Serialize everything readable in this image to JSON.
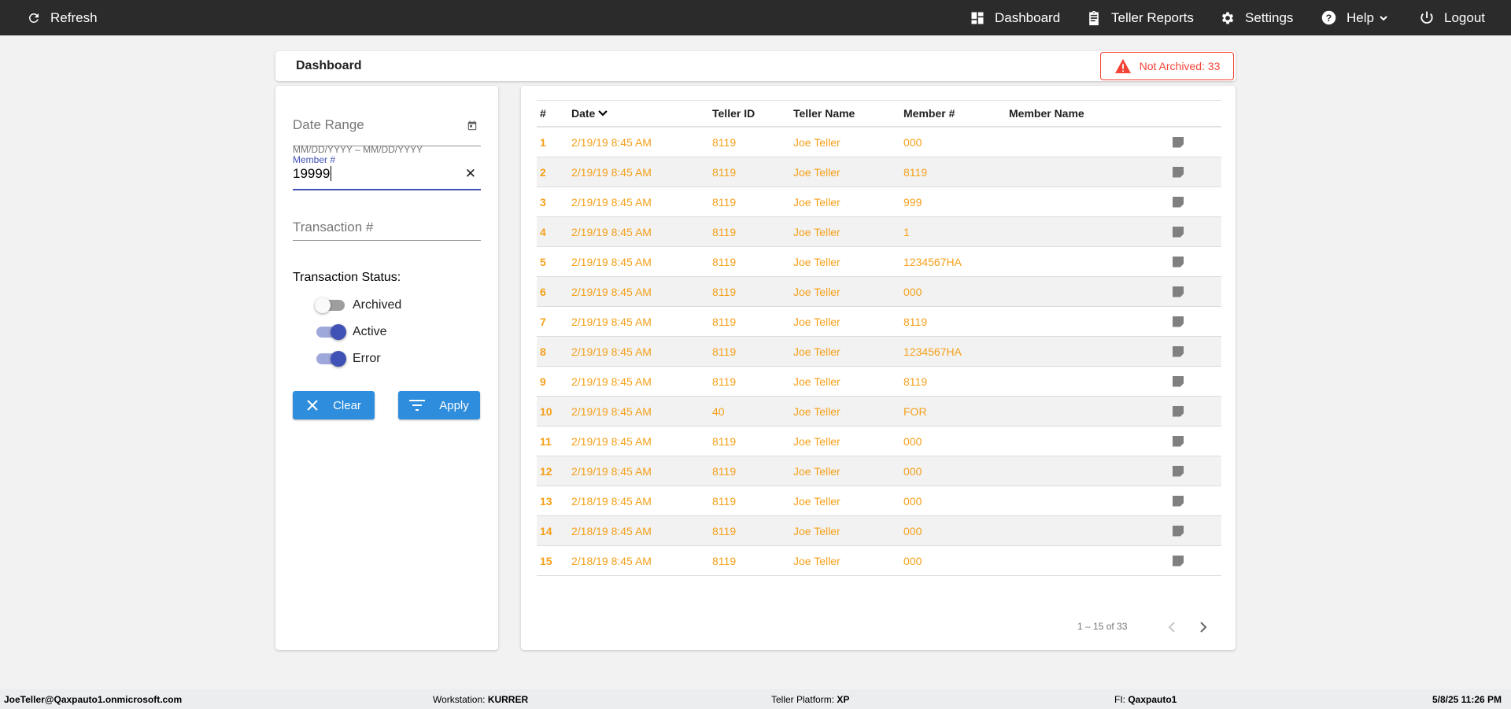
{
  "topbar": {
    "refresh": "Refresh",
    "items": [
      {
        "label": "Dashboard",
        "icon": "dashboard-icon"
      },
      {
        "label": "Teller Reports",
        "icon": "clipboard-icon"
      },
      {
        "label": "Settings",
        "icon": "gear-icon"
      },
      {
        "label": "Help",
        "icon": "help-icon"
      },
      {
        "label": "Logout",
        "icon": "power-icon"
      }
    ]
  },
  "header": {
    "title": "Dashboard",
    "badge": "Not Archived: 33",
    "badge_color": "#f44336"
  },
  "filters": {
    "date_range_label": "Date Range",
    "date_hint": "MM/DD/YYYY – MM/DD/YYYY",
    "member_label": "Member #",
    "member_value": "19999",
    "transaction_label": "Transaction #",
    "status_label": "Transaction Status:",
    "toggles": [
      {
        "label": "Archived",
        "on": false
      },
      {
        "label": "Active",
        "on": true
      },
      {
        "label": "Error",
        "on": true
      }
    ],
    "clear": "Clear",
    "apply": "Apply"
  },
  "table": {
    "columns": [
      "#",
      "Date",
      "Teller ID",
      "Teller Name",
      "Member #",
      "Member Name"
    ],
    "rows": [
      [
        "1",
        "2/19/19 8:45 AM",
        "8119",
        "Joe Teller",
        "000",
        ""
      ],
      [
        "2",
        "2/19/19 8:45 AM",
        "8119",
        "Joe Teller",
        "8119",
        ""
      ],
      [
        "3",
        "2/19/19 8:45 AM",
        "8119",
        "Joe Teller",
        "999",
        ""
      ],
      [
        "4",
        "2/19/19 8:45 AM",
        "8119",
        "Joe Teller",
        "1",
        ""
      ],
      [
        "5",
        "2/19/19 8:45 AM",
        "8119",
        "Joe Teller",
        "1234567HA",
        ""
      ],
      [
        "6",
        "2/19/19 8:45 AM",
        "8119",
        "Joe Teller",
        "000",
        ""
      ],
      [
        "7",
        "2/19/19 8:45 AM",
        "8119",
        "Joe Teller",
        "8119",
        ""
      ],
      [
        "8",
        "2/19/19 8:45 AM",
        "8119",
        "Joe Teller",
        "1234567HA",
        ""
      ],
      [
        "9",
        "2/19/19 8:45 AM",
        "8119",
        "Joe Teller",
        "8119",
        ""
      ],
      [
        "10",
        "2/19/19 8:45 AM",
        "40",
        "Joe Teller",
        "FOR",
        ""
      ],
      [
        "11",
        "2/19/19 8:45 AM",
        "8119",
        "Joe Teller",
        "000",
        ""
      ],
      [
        "12",
        "2/19/19 8:45 AM",
        "8119",
        "Joe Teller",
        "000",
        ""
      ],
      [
        "13",
        "2/18/19 8:45 AM",
        "8119",
        "Joe Teller",
        "000",
        ""
      ],
      [
        "14",
        "2/18/19 8:45 AM",
        "8119",
        "Joe Teller",
        "000",
        ""
      ],
      [
        "15",
        "2/18/19 8:45 AM",
        "8119",
        "Joe Teller",
        "000",
        ""
      ]
    ],
    "pagination": "1 – 15 of 33"
  },
  "footer": {
    "user": "JoeTeller@Qaxpauto1.onmicrosoft.com",
    "workstation_label": "Workstation: ",
    "workstation": "KURRER",
    "platform_label": "Teller Platform: ",
    "platform": "XP",
    "fi_label": "FI: ",
    "fi": "Qaxpauto1",
    "datetime": "5/8/25 11:26 PM"
  }
}
